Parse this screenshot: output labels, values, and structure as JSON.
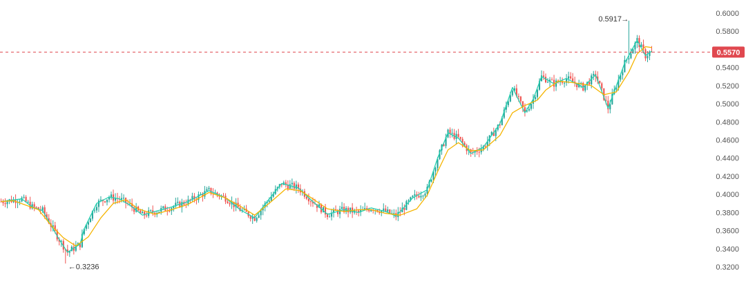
{
  "chart_data": {
    "type": "candlestick",
    "y_ticks": [
      "0.6000",
      "0.5800",
      "0.5600",
      "0.5400",
      "0.5200",
      "0.5000",
      "0.4800",
      "0.4600",
      "0.4400",
      "0.4200",
      "0.4000",
      "0.3800",
      "0.3600",
      "0.3400",
      "0.3200"
    ],
    "ylim": [
      0.3,
      0.61
    ],
    "grid": false,
    "current_price": {
      "label": "0.5570",
      "value": 0.557,
      "color": "#e0484f"
    },
    "annotations": {
      "high": {
        "label": "0.5917",
        "arrow": "→",
        "value": 0.5917,
        "bar_index": 302
      },
      "low": {
        "label": "0.3236",
        "arrow": "←",
        "value": 0.3236,
        "bar_index": 31
      }
    },
    "colors": {
      "up": "#26a69a",
      "down": "#ef5350",
      "ma_fast": "#26d0b0",
      "ma_slow": "#f5b400"
    },
    "bar_count": 314,
    "series": [
      {
        "name": "",
        "type": "ma",
        "color": "#26d0b0",
        "points": [
          [
            0,
            0.392
          ],
          [
            10,
            0.395
          ],
          [
            15,
            0.386
          ],
          [
            20,
            0.382
          ],
          [
            28,
            0.35
          ],
          [
            32,
            0.336
          ],
          [
            38,
            0.345
          ],
          [
            40,
            0.362
          ],
          [
            46,
            0.39
          ],
          [
            52,
            0.397
          ],
          [
            57,
            0.395
          ],
          [
            62,
            0.388
          ],
          [
            68,
            0.377
          ],
          [
            74,
            0.381
          ],
          [
            82,
            0.386
          ],
          [
            90,
            0.392
          ],
          [
            100,
            0.404
          ],
          [
            108,
            0.396
          ],
          [
            115,
            0.383
          ],
          [
            122,
            0.374
          ],
          [
            128,
            0.392
          ],
          [
            135,
            0.412
          ],
          [
            143,
            0.407
          ],
          [
            150,
            0.392
          ],
          [
            157,
            0.378
          ],
          [
            165,
            0.383
          ],
          [
            172,
            0.38
          ],
          [
            178,
            0.385
          ],
          [
            185,
            0.381
          ],
          [
            190,
            0.376
          ],
          [
            198,
            0.396
          ],
          [
            205,
            0.405
          ],
          [
            210,
            0.44
          ],
          [
            215,
            0.468
          ],
          [
            220,
            0.462
          ],
          [
            226,
            0.445
          ],
          [
            232,
            0.452
          ],
          [
            240,
            0.478
          ],
          [
            246,
            0.518
          ],
          [
            252,
            0.49
          ],
          [
            256,
            0.505
          ],
          [
            260,
            0.53
          ],
          [
            266,
            0.522
          ],
          [
            272,
            0.528
          ],
          [
            280,
            0.518
          ],
          [
            286,
            0.532
          ],
          [
            292,
            0.495
          ],
          [
            300,
            0.545
          ],
          [
            306,
            0.57
          ],
          [
            310,
            0.553
          ],
          [
            313,
            0.558
          ]
        ]
      },
      {
        "name": "",
        "type": "ma",
        "color": "#f5b400",
        "points": [
          [
            0,
            0.392
          ],
          [
            6,
            0.393
          ],
          [
            12,
            0.388
          ],
          [
            18,
            0.383
          ],
          [
            24,
            0.366
          ],
          [
            30,
            0.352
          ],
          [
            36,
            0.343
          ],
          [
            42,
            0.353
          ],
          [
            48,
            0.374
          ],
          [
            54,
            0.39
          ],
          [
            60,
            0.394
          ],
          [
            66,
            0.384
          ],
          [
            74,
            0.378
          ],
          [
            82,
            0.383
          ],
          [
            90,
            0.389
          ],
          [
            100,
            0.402
          ],
          [
            108,
            0.396
          ],
          [
            115,
            0.387
          ],
          [
            122,
            0.377
          ],
          [
            130,
            0.392
          ],
          [
            137,
            0.406
          ],
          [
            144,
            0.404
          ],
          [
            150,
            0.395
          ],
          [
            157,
            0.384
          ],
          [
            165,
            0.381
          ],
          [
            172,
            0.383
          ],
          [
            178,
            0.383
          ],
          [
            185,
            0.379
          ],
          [
            192,
            0.377
          ],
          [
            200,
            0.384
          ],
          [
            205,
            0.399
          ],
          [
            210,
            0.425
          ],
          [
            215,
            0.449
          ],
          [
            220,
            0.457
          ],
          [
            226,
            0.448
          ],
          [
            232,
            0.449
          ],
          [
            240,
            0.465
          ],
          [
            246,
            0.49
          ],
          [
            252,
            0.498
          ],
          [
            258,
            0.504
          ],
          [
            262,
            0.515
          ],
          [
            268,
            0.525
          ],
          [
            276,
            0.523
          ],
          [
            284,
            0.52
          ],
          [
            290,
            0.51
          ],
          [
            296,
            0.513
          ],
          [
            302,
            0.535
          ],
          [
            306,
            0.555
          ],
          [
            310,
            0.563
          ],
          [
            313,
            0.562
          ]
        ]
      }
    ]
  }
}
